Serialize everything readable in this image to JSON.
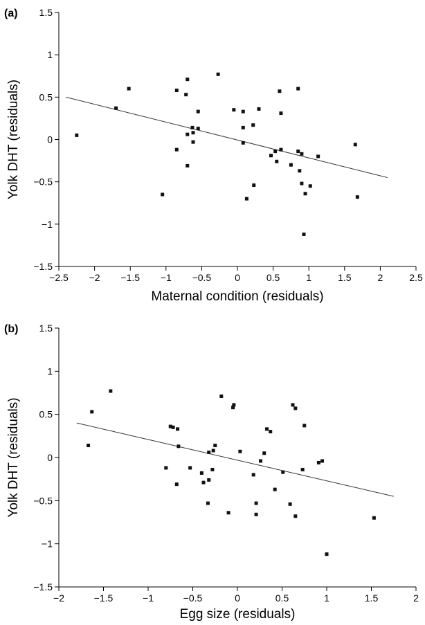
{
  "chart_data": [
    {
      "type": "scatter",
      "panel_label": "(a)",
      "xlabel": "Maternal condition (residuals)",
      "ylabel": "Yolk DHT (residuals)",
      "xlim": [
        -2.5,
        2.5
      ],
      "ylim": [
        -1.5,
        1.5
      ],
      "xticks": [
        -2.5,
        -2,
        -1.5,
        -1,
        -0.5,
        0,
        0.5,
        1,
        1.5,
        2,
        2.5
      ],
      "yticks": [
        -1.5,
        -1,
        -0.5,
        0,
        0.5,
        1,
        1.5
      ],
      "xtick_labels": [
        "−2.5",
        "−2",
        "−1.5",
        "−1",
        "−0.5",
        "0",
        "0.5",
        "1",
        "1.5",
        "2",
        "2.5"
      ],
      "ytick_labels": [
        "−1.5",
        "−1",
        "−0.5",
        "0",
        "0.5",
        "1",
        "1.5"
      ],
      "points": [
        [
          -2.25,
          0.05
        ],
        [
          -1.7,
          0.37
        ],
        [
          -1.52,
          0.6
        ],
        [
          -1.05,
          -0.65
        ],
        [
          -0.85,
          0.58
        ],
        [
          -0.85,
          -0.12
        ],
        [
          -0.72,
          0.53
        ],
        [
          -0.7,
          0.71
        ],
        [
          -0.7,
          0.06
        ],
        [
          -0.7,
          -0.31
        ],
        [
          -0.63,
          0.14
        ],
        [
          -0.62,
          0.08
        ],
        [
          -0.62,
          -0.03
        ],
        [
          -0.55,
          0.33
        ],
        [
          -0.55,
          0.13
        ],
        [
          -0.27,
          0.77
        ],
        [
          -0.05,
          0.35
        ],
        [
          0.08,
          0.33
        ],
        [
          0.08,
          0.14
        ],
        [
          0.08,
          -0.04
        ],
        [
          0.13,
          -0.7
        ],
        [
          0.22,
          0.17
        ],
        [
          0.23,
          -0.54
        ],
        [
          0.3,
          0.36
        ],
        [
          0.47,
          -0.19
        ],
        [
          0.53,
          -0.14
        ],
        [
          0.55,
          -0.26
        ],
        [
          0.59,
          0.57
        ],
        [
          0.61,
          0.31
        ],
        [
          0.61,
          -0.12
        ],
        [
          0.75,
          -0.3
        ],
        [
          0.85,
          0.6
        ],
        [
          0.85,
          -0.14
        ],
        [
          0.87,
          -0.37
        ],
        [
          0.9,
          -0.17
        ],
        [
          0.9,
          -0.52
        ],
        [
          0.93,
          -1.12
        ],
        [
          0.95,
          -0.64
        ],
        [
          1.02,
          -0.55
        ],
        [
          1.13,
          -0.2
        ],
        [
          1.65,
          -0.06
        ],
        [
          1.68,
          -0.68
        ]
      ],
      "fit_line": [
        [
          -2.4,
          0.5
        ],
        [
          2.1,
          -0.45
        ]
      ]
    },
    {
      "type": "scatter",
      "panel_label": "(b)",
      "xlabel": "Egg size (residuals)",
      "ylabel": "Yolk DHT (residuals)",
      "xlim": [
        -2,
        2
      ],
      "ylim": [
        -1.5,
        1.5
      ],
      "xticks": [
        -2,
        -1.5,
        -1,
        -0.5,
        0,
        0.5,
        1,
        1.5,
        2
      ],
      "yticks": [
        -1.5,
        -1,
        -0.5,
        0,
        0.5,
        1,
        1.5
      ],
      "xtick_labels": [
        "−2",
        "−1.5",
        "−1",
        "−0.5",
        "0",
        "0.5",
        "1",
        "1.5",
        "2"
      ],
      "ytick_labels": [
        "−1.5",
        "−1",
        "−0.5",
        "0",
        "0.5",
        "1",
        "1.5"
      ],
      "points": [
        [
          -1.67,
          0.14
        ],
        [
          -1.63,
          0.53
        ],
        [
          -1.42,
          0.77
        ],
        [
          -0.8,
          -0.12
        ],
        [
          -0.75,
          0.36
        ],
        [
          -0.72,
          0.35
        ],
        [
          -0.68,
          -0.31
        ],
        [
          -0.67,
          0.33
        ],
        [
          -0.66,
          0.13
        ],
        [
          -0.53,
          -0.12
        ],
        [
          -0.4,
          -0.18
        ],
        [
          -0.38,
          -0.29
        ],
        [
          -0.33,
          -0.53
        ],
        [
          -0.32,
          0.06
        ],
        [
          -0.32,
          -0.26
        ],
        [
          -0.28,
          -0.14
        ],
        [
          -0.27,
          0.08
        ],
        [
          -0.25,
          0.14
        ],
        [
          -0.18,
          0.71
        ],
        [
          -0.1,
          -0.64
        ],
        [
          -0.05,
          0.58
        ],
        [
          -0.04,
          0.61
        ],
        [
          0.03,
          0.07
        ],
        [
          0.18,
          -0.2
        ],
        [
          0.21,
          -0.53
        ],
        [
          0.21,
          -0.66
        ],
        [
          0.26,
          -0.04
        ],
        [
          0.3,
          0.05
        ],
        [
          0.33,
          0.33
        ],
        [
          0.37,
          0.3
        ],
        [
          0.42,
          -0.37
        ],
        [
          0.51,
          -0.17
        ],
        [
          0.59,
          -0.54
        ],
        [
          0.62,
          0.61
        ],
        [
          0.65,
          0.57
        ],
        [
          0.65,
          -0.68
        ],
        [
          0.73,
          -0.14
        ],
        [
          0.75,
          0.37
        ],
        [
          0.91,
          -0.06
        ],
        [
          0.95,
          -0.04
        ],
        [
          1.0,
          -1.12
        ],
        [
          1.53,
          -0.7
        ]
      ],
      "fit_line": [
        [
          -1.8,
          0.4
        ],
        [
          1.75,
          -0.45
        ]
      ]
    }
  ]
}
